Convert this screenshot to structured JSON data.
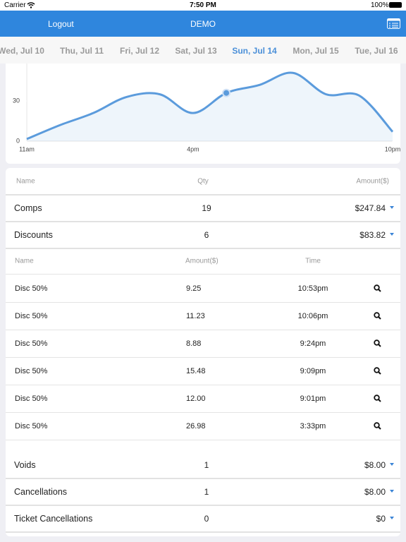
{
  "status_bar": {
    "carrier": "Carrier",
    "time": "7:50 PM",
    "battery": "100%"
  },
  "nav": {
    "left": "Logout",
    "title": "DEMO"
  },
  "dates": {
    "items": [
      "Wed, Jul 10",
      "Thu, Jul 11",
      "Fri, Jul 12",
      "Sat, Jul 13",
      "Sun, Jul 14",
      "Mon, Jul 15",
      "Tue, Jul 16"
    ],
    "selected": 4
  },
  "chart_data": {
    "type": "line",
    "x": [
      11,
      12,
      13,
      14,
      15,
      16,
      17,
      18,
      19,
      20,
      21,
      22
    ],
    "values": [
      1.6,
      12,
      21,
      33,
      35,
      21,
      36,
      42,
      51,
      35,
      34,
      7
    ],
    "color": "#5b9bdc",
    "highlight": 6,
    "xlim": [
      11,
      22
    ],
    "xticks": [
      {
        "value": 11,
        "label": "11am"
      },
      {
        "value": 16,
        "label": "4pm"
      },
      {
        "value": 22,
        "label": "10pm"
      }
    ],
    "ylim": [
      0,
      58
    ],
    "yticks": [
      0,
      30
    ],
    "grid": false
  },
  "summary": {
    "header": [
      "Name",
      "Qty",
      "Amount($)"
    ],
    "expanded": 1,
    "rows": [
      [
        "Comps",
        "19",
        "$247.84"
      ],
      [
        "Discounts",
        "6",
        "$83.82"
      ],
      [
        "Voids",
        "1",
        "$8.00"
      ],
      [
        "Cancellations",
        "1",
        "$8.00"
      ],
      [
        "Ticket Cancellations",
        "0",
        "$0"
      ]
    ]
  },
  "details": {
    "header": [
      "Name",
      "Amount($)",
      "Time"
    ],
    "rows": [
      [
        "Disc 50%",
        "9.25",
        "10:53pm"
      ],
      [
        "Disc 50%",
        "11.23",
        "10:06pm"
      ],
      [
        "Disc 50%",
        "8.88",
        "9:24pm"
      ],
      [
        "Disc 50%",
        "15.48",
        "9:09pm"
      ],
      [
        "Disc 50%",
        "12.00",
        "9:01pm"
      ],
      [
        "Disc 50%",
        "26.98",
        "3:33pm"
      ]
    ]
  }
}
